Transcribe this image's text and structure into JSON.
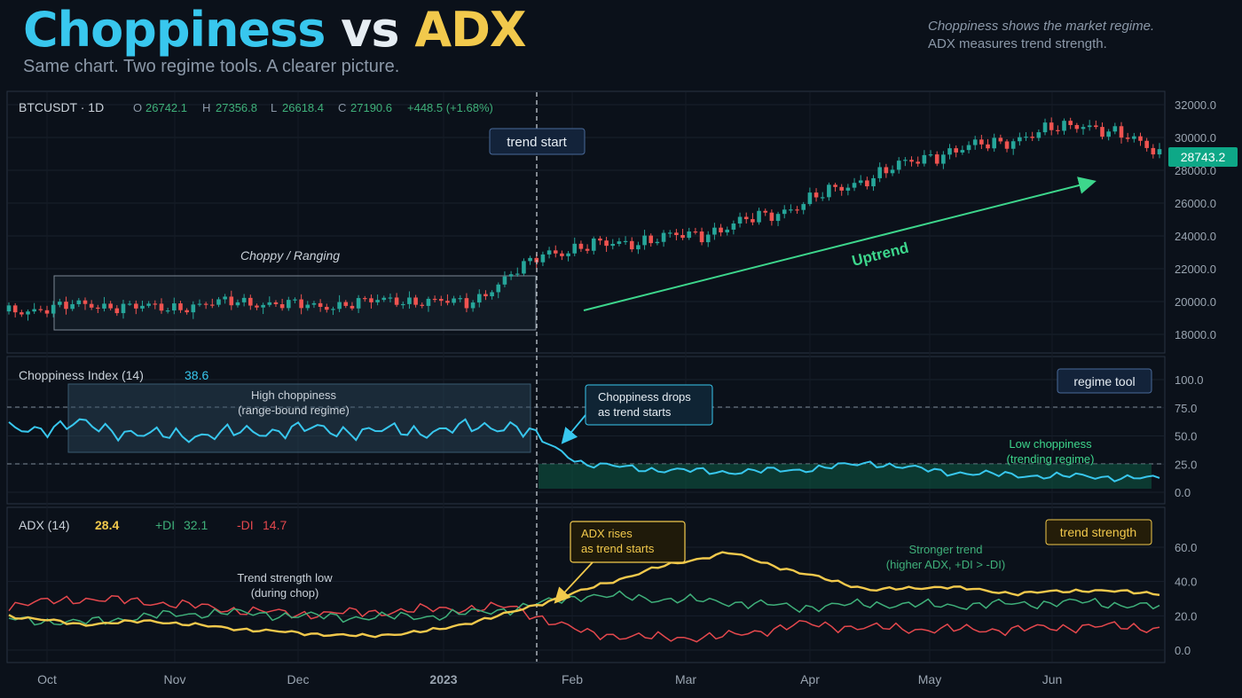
{
  "header": {
    "title_part1": "Choppiness",
    "title_part2": "vs",
    "title_part3": "ADX",
    "subtitle": "Same chart. Two regime tools. A clearer picture.",
    "note_line1": "Choppiness shows the market regime.",
    "note_line2": "ADX measures trend strength."
  },
  "colors": {
    "background": "#0b111a",
    "choppiness": "#38c7ee",
    "adx": "#f2c94c",
    "plus_di": "#3fb07a",
    "minus_di": "#e5484d",
    "candle_up": "#26a69a",
    "candle_down": "#ef5350",
    "uptrend_arrow": "#3dd68c",
    "price_tag": "#0ea887"
  },
  "price_panel": {
    "symbol": "BTCUSDT · 1D",
    "open_label": "O",
    "open": "26742.1",
    "high_label": "H",
    "high": "27356.8",
    "low_label": "L",
    "low": "26618.4",
    "close_label": "C",
    "close": "27190.6",
    "change": "+448.5 (+1.68%)",
    "last_price_tag": "28743.2",
    "trend_start_label": "trend start",
    "range_label": "Choppy / Ranging",
    "uptrend_label": "Uptrend",
    "y_ticks": [
      "32000.0",
      "30000.0",
      "28000.0",
      "26000.0",
      "24000.0",
      "22000.0",
      "20000.0",
      "18000.0"
    ]
  },
  "chop_panel": {
    "name": "Choppiness Index (14)",
    "value": "38.6",
    "badge": "regime tool",
    "high_label_line1": "High choppiness",
    "high_label_line2": "(range-bound regime)",
    "drop_label_line1": "Choppiness drops",
    "drop_label_line2": "as trend starts",
    "low_label_line1": "Low choppiness",
    "low_label_line2": "(trending regime)",
    "y_ticks": [
      "100.0",
      "75.0",
      "50.0",
      "25.0",
      "0.0"
    ]
  },
  "adx_panel": {
    "name": "ADX (14)",
    "value": "28.4",
    "plus_di_label": "+DI",
    "plus_di_value": "32.1",
    "minus_di_label": "-DI",
    "minus_di_value": "14.7",
    "badge": "trend strength",
    "low_label_line1": "Trend strength low",
    "low_label_line2": "(during chop)",
    "rise_label_line1": "ADX rises",
    "rise_label_line2": "as trend starts",
    "strong_label_line1": "Stronger trend",
    "strong_label_line2": "(higher ADX, +DI > -DI)",
    "y_ticks": [
      "60.0",
      "40.0",
      "20.0",
      "0.0"
    ]
  },
  "x_axis": {
    "labels": [
      "Oct",
      "Nov",
      "Dec",
      "2023",
      "Feb",
      "Mar",
      "Apr",
      "May",
      "Jun"
    ]
  },
  "chart_data": {
    "type": "line",
    "x": [
      "Oct",
      "Nov",
      "Dec",
      "2023",
      "Feb",
      "Mar",
      "Apr",
      "May",
      "Jun"
    ],
    "price_ohlc_approx": {
      "type": "candlestick",
      "close": [
        19400,
        19800,
        19600,
        20000,
        19700,
        20100,
        19900,
        23000,
        23600,
        24100,
        25400,
        27200,
        28900,
        29800,
        30900,
        29200
      ],
      "ylim": [
        17000,
        33000
      ]
    },
    "choppiness": {
      "name": "Choppiness Index (14)",
      "values": [
        55,
        60,
        50,
        52,
        56,
        54,
        55,
        60,
        25,
        20,
        18,
        20,
        26,
        18,
        15,
        14,
        12
      ],
      "ylim": [
        0,
        100
      ],
      "levels": [
        75.0,
        25.0
      ]
    },
    "adx": {
      "series": [
        {
          "name": "ADX (14)",
          "values": [
            20,
            15,
            17,
            13,
            10,
            8,
            12,
            22,
            35,
            48,
            57,
            45,
            35,
            37,
            33,
            35,
            33
          ]
        },
        {
          "name": "+DI",
          "values": [
            18,
            16,
            20,
            22,
            20,
            19,
            20,
            24,
            32,
            30,
            28,
            25,
            27,
            26,
            27,
            28,
            25
          ]
        },
        {
          "name": "-DI",
          "values": [
            26,
            30,
            28,
            24,
            21,
            22,
            24,
            25,
            10,
            7,
            8,
            15,
            13,
            12,
            12,
            14,
            13
          ]
        }
      ],
      "ylim": [
        -5,
        65
      ]
    }
  }
}
